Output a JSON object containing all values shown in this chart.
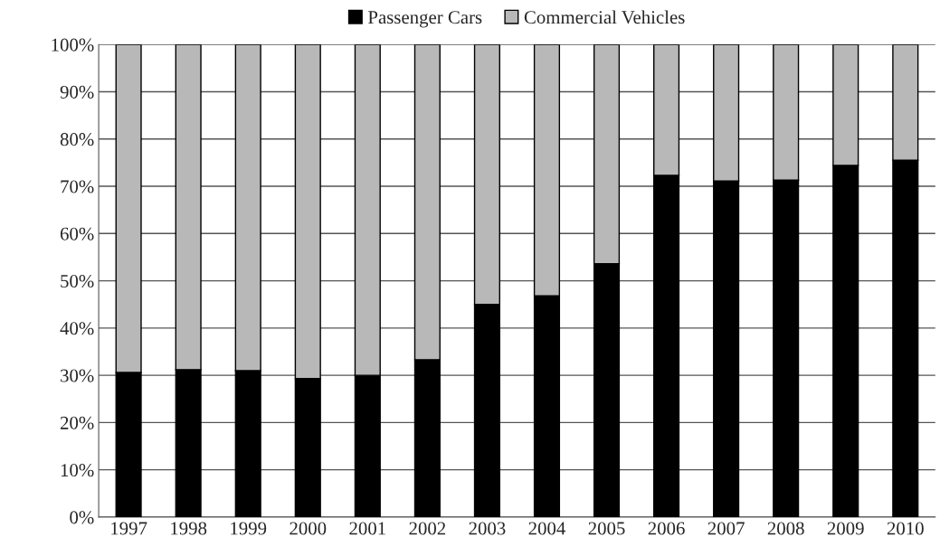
{
  "chart_data": {
    "type": "bar",
    "stacked": true,
    "categories": [
      "1997",
      "1998",
      "1999",
      "2000",
      "2001",
      "2002",
      "2003",
      "2004",
      "2005",
      "2006",
      "2007",
      "2008",
      "2009",
      "2010"
    ],
    "series": [
      {
        "name": "Passenger Cars",
        "color": "#000000",
        "values": [
          30.6,
          31.2,
          31,
          29.3,
          30,
          33.3,
          45,
          46.8,
          53.6,
          72.3,
          71.1,
          71.3,
          74.4,
          75.5
        ]
      },
      {
        "name": "Commercial Vehicles",
        "color": "#b8b8b8",
        "values": [
          69.4,
          68.8,
          69,
          70.7,
          70,
          66.7,
          55,
          53.2,
          46.4,
          27.7,
          28.9,
          28.7,
          25.6,
          24.5
        ]
      }
    ],
    "ylim": [
      0,
      100
    ],
    "yticks": [
      {
        "value": 0,
        "label": "0%"
      },
      {
        "value": 10,
        "label": "10%"
      },
      {
        "value": 20,
        "label": "20%"
      },
      {
        "value": 30,
        "label": "30%"
      },
      {
        "value": 40,
        "label": "40%"
      },
      {
        "value": 50,
        "label": "50%"
      },
      {
        "value": 60,
        "label": "60%"
      },
      {
        "value": 70,
        "label": "70%"
      },
      {
        "value": 80,
        "label": "80%"
      },
      {
        "value": 90,
        "label": "90%"
      },
      {
        "value": 100,
        "label": "100%"
      }
    ],
    "grid": "y",
    "legend": "top"
  }
}
